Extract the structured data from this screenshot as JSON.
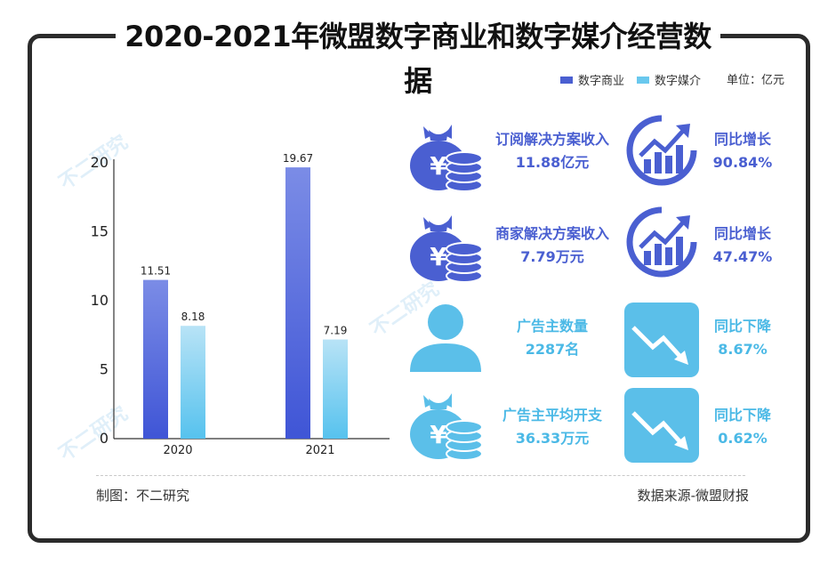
{
  "header": {
    "title": "2020-2021年微盟数字商业和数字媒介经营数据"
  },
  "legend": [
    {
      "name": "数字商业",
      "color": "#4a5fd1"
    },
    {
      "name": "数字媒介",
      "color": "#69c8ee"
    }
  ],
  "unit": "单位：亿元",
  "chart_data": {
    "type": "bar",
    "categories": [
      "2020",
      "2021"
    ],
    "series": [
      {
        "name": "数字商业",
        "values": [
          11.51,
          19.67
        ]
      },
      {
        "name": "数字媒介",
        "values": [
          8.18,
          7.19
        ]
      }
    ],
    "value_labels": [
      [
        "11.51",
        "19.67"
      ],
      [
        "8.18",
        "7.19"
      ]
    ],
    "yticks": [
      0,
      5,
      10,
      15,
      20
    ],
    "ylim": [
      0,
      20
    ],
    "title": "2020-2021年微盟数字商业和数字媒介经营数据",
    "xlabel": "",
    "ylabel": ""
  },
  "metrics": [
    {
      "name": "订阅解决方案收入",
      "value": "11.88亿元",
      "change_label": "同比增长",
      "change_value": "90.84%",
      "direction": "up",
      "icon": "money-bag-icon"
    },
    {
      "name": "商家解决方案收入",
      "value": "7.79万元",
      "change_label": "同比增长",
      "change_value": "47.47%",
      "direction": "up",
      "icon": "money-bag-icon"
    },
    {
      "name": "广告主数量",
      "value": "2287名",
      "change_label": "同比下降",
      "change_value": "8.67%",
      "direction": "down",
      "icon": "user-icon"
    },
    {
      "name": "广告主平均开支",
      "value": "36.33万元",
      "change_label": "同比下降",
      "change_value": "0.62%",
      "direction": "down",
      "icon": "money-bag-icon"
    }
  ],
  "footer": {
    "author": "制图：不二研究",
    "source": "数据来源-微盟财报"
  },
  "watermark": "不二研究"
}
